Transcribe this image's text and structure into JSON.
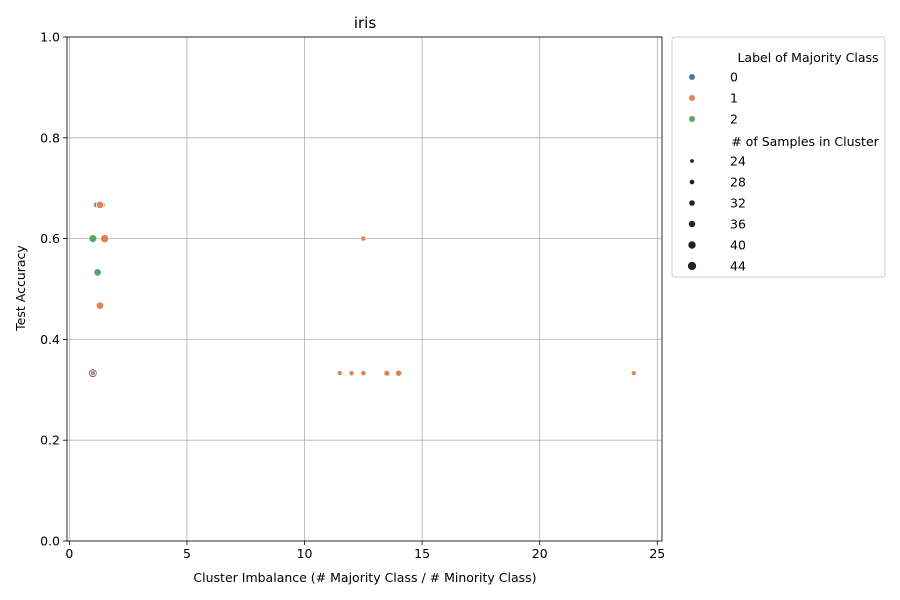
{
  "chart_data": {
    "type": "scatter",
    "title": "iris",
    "xlabel": "Cluster Imbalance (# Majority Class / # Minority Class)",
    "ylabel": "Test Accuracy",
    "xlim": [
      -0.1,
      25.2
    ],
    "ylim": [
      0.0,
      1.0
    ],
    "xticks": [
      0,
      5,
      10,
      15,
      20,
      25
    ],
    "yticks": [
      0.0,
      0.2,
      0.4,
      0.6,
      0.8,
      1.0
    ],
    "xtick_labels": [
      "0",
      "5",
      "10",
      "15",
      "20",
      "25"
    ],
    "ytick_labels": [
      "0.0",
      "0.2",
      "0.4",
      "0.6",
      "0.8",
      "1.0"
    ],
    "grid": true,
    "legend_placement": "outside-right",
    "hue_title": "Label of Majority Class",
    "size_title": "# of Samples in Cluster",
    "hue_levels": [
      {
        "label": "0",
        "color": "#4c72b0"
      },
      {
        "label": "1",
        "color": "#dd8452"
      },
      {
        "label": "2",
        "color": "#55a868"
      }
    ],
    "size_levels": [
      {
        "label": "24",
        "value": 24
      },
      {
        "label": "28",
        "value": 28
      },
      {
        "label": "32",
        "value": 32
      },
      {
        "label": "36",
        "value": 36
      },
      {
        "label": "40",
        "value": 40
      },
      {
        "label": "44",
        "value": 44
      }
    ],
    "points": [
      {
        "x": 1.0,
        "y": 0.333,
        "cls": 0,
        "n": 44
      },
      {
        "x": 1.0,
        "y": 0.333,
        "cls": 1,
        "n": 26
      },
      {
        "x": 1.15,
        "y": 0.667,
        "cls": 2,
        "n": 30
      },
      {
        "x": 1.4,
        "y": 0.667,
        "cls": 1,
        "n": 30
      },
      {
        "x": 1.3,
        "y": 0.667,
        "cls": 1,
        "n": 38
      },
      {
        "x": 1.0,
        "y": 0.6,
        "cls": 2,
        "n": 40
      },
      {
        "x": 1.5,
        "y": 0.6,
        "cls": 1,
        "n": 42
      },
      {
        "x": 1.2,
        "y": 0.533,
        "cls": 2,
        "n": 38
      },
      {
        "x": 1.3,
        "y": 0.467,
        "cls": 1,
        "n": 38
      },
      {
        "x": 12.5,
        "y": 0.6,
        "cls": 1,
        "n": 26
      },
      {
        "x": 11.5,
        "y": 0.333,
        "cls": 1,
        "n": 25
      },
      {
        "x": 12.0,
        "y": 0.333,
        "cls": 1,
        "n": 26
      },
      {
        "x": 12.5,
        "y": 0.333,
        "cls": 1,
        "n": 26
      },
      {
        "x": 13.5,
        "y": 0.333,
        "cls": 1,
        "n": 30
      },
      {
        "x": 14.0,
        "y": 0.333,
        "cls": 1,
        "n": 32
      },
      {
        "x": 24.0,
        "y": 0.333,
        "cls": 1,
        "n": 25
      }
    ]
  }
}
